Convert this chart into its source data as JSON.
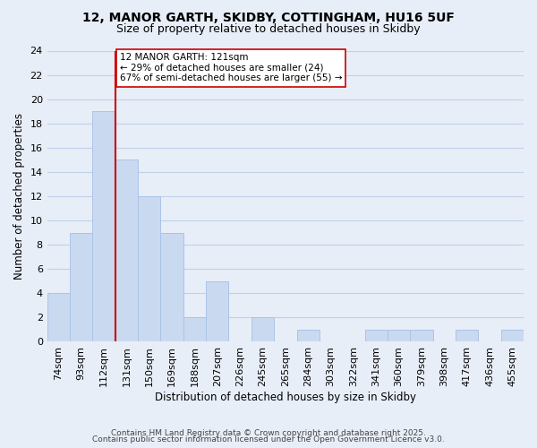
{
  "title_line1": "12, MANOR GARTH, SKIDBY, COTTINGHAM, HU16 5UF",
  "title_line2": "Size of property relative to detached houses in Skidby",
  "xlabel": "Distribution of detached houses by size in Skidby",
  "ylabel": "Number of detached properties",
  "bin_labels": [
    "74sqm",
    "93sqm",
    "112sqm",
    "131sqm",
    "150sqm",
    "169sqm",
    "188sqm",
    "207sqm",
    "226sqm",
    "245sqm",
    "265sqm",
    "284sqm",
    "303sqm",
    "322sqm",
    "341sqm",
    "360sqm",
    "379sqm",
    "398sqm",
    "417sqm",
    "436sqm",
    "455sqm"
  ],
  "bar_values": [
    4,
    9,
    19,
    15,
    12,
    9,
    2,
    5,
    0,
    2,
    0,
    1,
    0,
    0,
    1,
    1,
    1,
    0,
    1,
    0,
    1
  ],
  "bar_color": "#c9d9f0",
  "bar_edge_color": "#aac4e8",
  "vline_color": "#cc0000",
  "annotation_text": "12 MANOR GARTH: 121sqm\n← 29% of detached houses are smaller (24)\n67% of semi-detached houses are larger (55) →",
  "annotation_box_color": "white",
  "annotation_box_edge_color": "#cc0000",
  "ylim": [
    0,
    24
  ],
  "yticks": [
    0,
    2,
    4,
    6,
    8,
    10,
    12,
    14,
    16,
    18,
    20,
    22,
    24
  ],
  "grid_color": "#c0d0e8",
  "background_color": "#e8eef8",
  "footer_line1": "Contains HM Land Registry data © Crown copyright and database right 2025.",
  "footer_line2": "Contains public sector information licensed under the Open Government Licence v3.0.",
  "title_fontsize": 10,
  "subtitle_fontsize": 9,
  "annotation_fontsize": 7.5,
  "footer_fontsize": 6.5,
  "ylabel_text": "Number of detached properties"
}
